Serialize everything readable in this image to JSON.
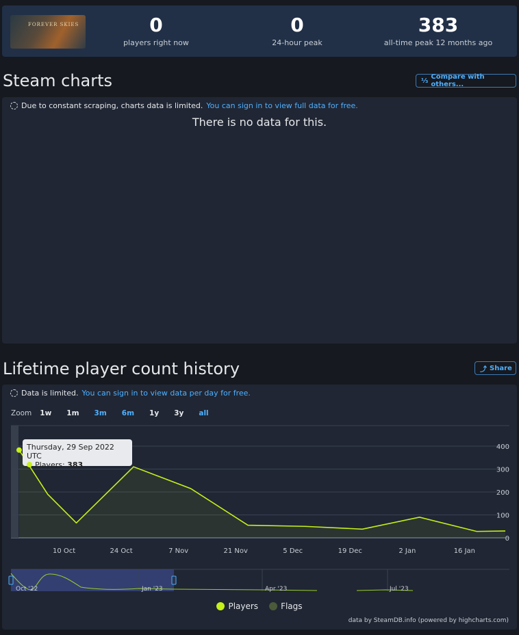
{
  "header": {
    "game_logo_text": "FOREVER SKIES",
    "stats": [
      {
        "value": "0",
        "label": "players right now"
      },
      {
        "value": "0",
        "label": "24-hour peak"
      },
      {
        "value": "383",
        "label": "all-time peak 12 months ago"
      }
    ]
  },
  "steam_charts": {
    "title": "Steam charts",
    "compare_label": "Compare with others...",
    "notice_text": "Due to constant scraping, charts data is limited.",
    "notice_link": "You can sign in to view full data for free.",
    "no_data": "There is no data for this."
  },
  "lifetime": {
    "title": "Lifetime player count history",
    "share_label": "Share",
    "notice_text": "Data is limited.",
    "notice_link": "You can sign in to view data per day for free.",
    "zoom_label": "Zoom",
    "zoom_buttons": [
      "1w",
      "1m",
      "3m",
      "6m",
      "1y",
      "3y",
      "all"
    ],
    "tooltip": {
      "date": "Thursday, 29 Sep 2022 UTC",
      "series": "Players",
      "value": "383"
    },
    "legend": [
      {
        "name": "Players",
        "color": "#c6f019"
      },
      {
        "name": "Flags",
        "color": "#4b5a3a"
      }
    ],
    "credit": "data by SteamDB.info (powered by highcharts.com)",
    "navigator_labels": [
      "Oct '22",
      "Jan '23",
      "Apr '23",
      "Jul '23"
    ]
  },
  "chart_data": {
    "type": "line",
    "series": [
      {
        "name": "Players",
        "x": [
          "2022-09-29",
          "2022-10-06",
          "2022-10-13",
          "2022-10-27",
          "2022-11-10",
          "2022-11-24",
          "2022-12-08",
          "2022-12-22",
          "2023-01-05",
          "2023-01-19",
          "2023-01-26"
        ],
        "values": [
          383,
          190,
          65,
          310,
          215,
          55,
          50,
          38,
          90,
          28,
          30
        ]
      }
    ],
    "x_ticks": [
      "10 Oct",
      "24 Oct",
      "7 Nov",
      "21 Nov",
      "5 Dec",
      "19 Dec",
      "2 Jan",
      "16 Jan"
    ],
    "y_ticks": [
      0,
      100,
      200,
      300,
      400
    ],
    "ylim": [
      0,
      400
    ],
    "grid": true,
    "legend_position": "bottom-center"
  }
}
